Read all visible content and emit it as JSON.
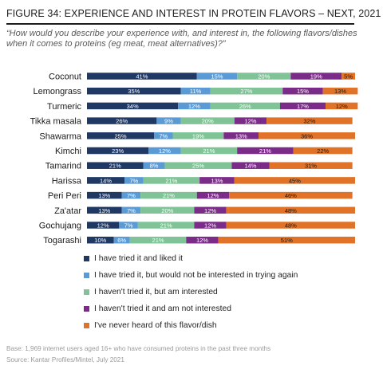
{
  "header": {
    "title": "FIGURE 34: EXPERIENCE AND INTEREST IN PROTEIN FLAVORS – NEXT, 2021",
    "question": "“How would you describe your experience with, and interest in, the following flavors/dishes when it comes to proteins (eg meat, meat alternatives)?”"
  },
  "footer": {
    "base": "Base: 1,969 internet users aged 16+ who have consumed proteins in the past three months",
    "source": "Source: Kantar Profiles/Mintel, July 2021"
  },
  "chart_data": {
    "type": "bar",
    "orientation": "horizontal",
    "stacked": true,
    "categories": [
      "Coconut",
      "Lemongrass",
      "Turmeric",
      "Tikka masala",
      "Shawarma",
      "Kimchi",
      "Tamarind",
      "Harissa",
      "Peri Peri",
      "Za'atar",
      "Gochujang",
      "Togarashi"
    ],
    "series": [
      {
        "name": "I have tried it and liked it",
        "color": "#1f3864",
        "values": [
          41,
          35,
          34,
          26,
          25,
          23,
          21,
          14,
          13,
          13,
          12,
          10
        ],
        "labels": [
          "41%",
          "35%",
          "34%",
          "26%",
          "25%",
          "23%",
          "21%",
          "14%",
          "13%",
          "13%",
          "12%",
          "10%"
        ]
      },
      {
        "name": "I have tried it, but would not be interested in trying again",
        "color": "#5b9bd5",
        "values": [
          15,
          11,
          12,
          9,
          7,
          12,
          8,
          7,
          7,
          7,
          7,
          6
        ],
        "labels": [
          "15%",
          "11%",
          "12%",
          "9%",
          "7%",
          "12%",
          "8%",
          "7%",
          "7%",
          "7%",
          "7%",
          "6%"
        ]
      },
      {
        "name": "I haven't tried it, but am interested",
        "color": "#7fc396",
        "values": [
          20,
          27,
          26,
          20,
          19,
          21,
          25,
          21,
          21,
          20,
          21,
          21
        ],
        "labels": [
          "20%",
          "27%",
          "26%",
          "20%",
          "19%",
          "21%",
          "25%",
          "21%",
          "21%",
          "20%",
          "21%",
          "21%"
        ]
      },
      {
        "name": "I haven't tried it and am not interested",
        "color": "#7b2c88",
        "values": [
          19,
          15,
          17,
          12,
          13,
          21,
          14,
          13,
          12,
          12,
          12,
          12
        ],
        "labels": [
          "19%",
          "15%",
          "17%",
          "12%",
          "13%",
          "21%",
          "14%",
          "13%",
          "12%",
          "12%",
          "12%",
          "12%"
        ]
      },
      {
        "name": "I've never heard of this flavor/dish",
        "color": "#e07328",
        "values": [
          5,
          13,
          12,
          32,
          36,
          22,
          31,
          45,
          46,
          48,
          48,
          51
        ],
        "labels": [
          "5%",
          "13%",
          "12%",
          "32%",
          "36%",
          "22%",
          "31%",
          "45%",
          "46%",
          "48%",
          "48%",
          "51%"
        ]
      }
    ],
    "xlim": [
      0,
      100
    ],
    "legend_position": "bottom"
  }
}
